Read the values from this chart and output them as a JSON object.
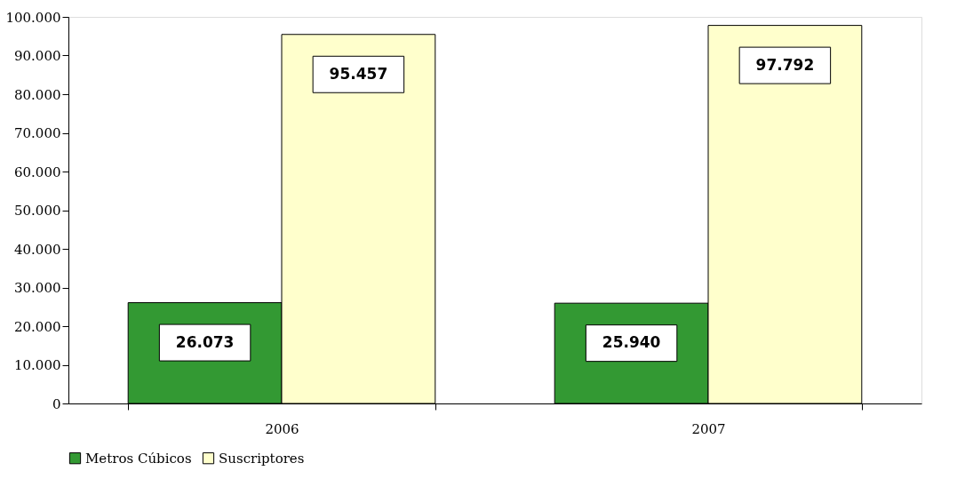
{
  "chart_data": {
    "type": "bar",
    "categories": [
      "2006",
      "2007"
    ],
    "series": [
      {
        "name": "Metros Cúbicos",
        "color": "#339933",
        "values": [
          26073,
          25940
        ],
        "value_labels": [
          "26.073",
          "25.940"
        ]
      },
      {
        "name": "Suscriptores",
        "color": "#ffffcc",
        "values": [
          95457,
          97792
        ],
        "value_labels": [
          "95.457",
          "97.792"
        ]
      }
    ],
    "ylim": [
      0,
      100000
    ],
    "yticks": [
      0,
      {
        "value": 10000,
        "label": "10.000"
      },
      {
        "value": 20000,
        "label": "20.000"
      },
      {
        "value": 30000,
        "label": "30.000"
      },
      {
        "value": 40000,
        "label": "40.000"
      },
      {
        "value": 50000,
        "label": "50.000"
      },
      {
        "value": 60000,
        "label": "60.000"
      },
      {
        "value": 70000,
        "label": "70.000"
      },
      {
        "value": 80000,
        "label": "80.000"
      },
      {
        "value": 90000,
        "label": "90.000"
      },
      {
        "value": 100000,
        "label": "100.000"
      }
    ],
    "grid": false,
    "legend": "bottom"
  }
}
